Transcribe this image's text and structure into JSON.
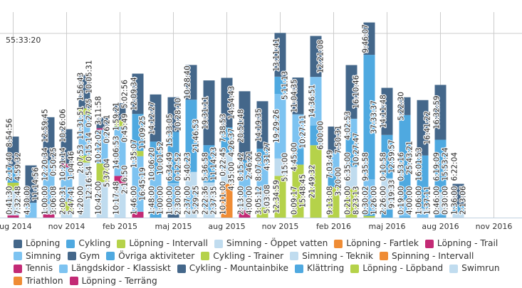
{
  "chart_data": {
    "type": "bar",
    "stacked": true,
    "y_axis": {
      "tick_labels": [
        "55:33:20"
      ],
      "ylim_hours": [
        0,
        62
      ],
      "grid": true
    },
    "x_axis": {
      "tick_labels": [
        "aug 2014",
        "nov 2014",
        "feb 2015",
        "maj 2015",
        "aug 2015",
        "nov 2015",
        "feb 2016",
        "maj 2016",
        "aug 2016",
        "nov 2016"
      ]
    },
    "legend_position": "bottom",
    "series_colors": {
      "Löpning": "#44678a",
      "Cykling": "#4fa9e0",
      "Löpning - Intervall": "#b5d24a",
      "Simning - Öppet vatten": "#c0dcef",
      "Löpning - Fartlek": "#ef8c35",
      "Löpning - Trail": "#c32a75",
      "Simning": "#7dc3f1",
      "Gym": "#44678a",
      "Övriga aktiviteter": "#4fa9e0",
      "Cykling - Trainer": "#b5d24a",
      "Simning - Teknik": "#c0dcef",
      "Spinning - Intervall": "#ef8c35",
      "Tennis": "#c32a75",
      "Längdskidor - Klassiskt": "#7dc3f1",
      "Cykling - Mountainbike": "#44678a",
      "Klättring": "#4fa9e0",
      "Löpning - Löpband": "#b5d24a",
      "Swimrun": "#c0dcef",
      "Triathlon": "#ef8c35",
      "Löpning - Terräng": "#c32a75"
    },
    "legend": [
      "Löpning",
      "Cykling",
      "Löpning - Intervall",
      "Simning - Öppet vatten",
      "Löpning - Fartlek",
      "Löpning - Trail",
      "Simning",
      "Gym",
      "Övriga aktiviteter",
      "Cykling - Trainer",
      "Simning - Teknik",
      "Spinning - Intervall",
      "Tennis",
      "Längdskidor - Klassiskt",
      "Cykling - Mountainbike",
      "Klättring",
      "Löpning - Löpband",
      "Swimrun",
      "Triathlon",
      "Löpning - Terräng"
    ],
    "bars": [
      {
        "month": "aug 2014",
        "segments": [
          [
            "Löpning - Trail",
            "0:41:30"
          ],
          [
            "Simning - Öppet vatten",
            "7:32:48"
          ],
          [
            "Löpning - Intervall",
            "2:17:40"
          ],
          [
            "Cykling",
            "4:59:32"
          ],
          [
            "Löpning",
            "8:54:56"
          ]
        ]
      },
      {
        "month": "sep 2014",
        "segments": [
          [
            "Simning",
            "4:30:00"
          ],
          [
            "Löpning",
            "11:14:56"
          ]
        ]
      },
      {
        "month": "okt 2014",
        "segments": [
          [
            "Löpning - Trail",
            "1:00:00"
          ],
          [
            "Simning - Öppet vatten",
            "3:06:08"
          ],
          [
            "Simning",
            "12:20:34"
          ],
          [
            "Cykling",
            "0:50:25"
          ],
          [
            "Löpning",
            "12:59:45"
          ]
        ]
      },
      {
        "month": "nov 2014",
        "segments": [
          [
            "Simning - Öppet vatten",
            "2:00:31"
          ],
          [
            "Löpning - Intervall",
            "2:47:41"
          ],
          [
            "Simning",
            "10:21:14"
          ],
          [
            "Löpning - Trail",
            "1:04:46"
          ],
          [
            "Löpning",
            "10:26:06"
          ]
        ]
      },
      {
        "month": "dec 2014",
        "segments": [
          [
            "Simning - Öppet vatten",
            "4:20:00"
          ],
          [
            "Simning - Teknik",
            "12:16:54"
          ],
          [
            "Cykling - Trainer",
            "2:07:53"
          ],
          [
            "Övriga aktiviteter",
            "0:15:14"
          ],
          [
            "Simning",
            "11:31:51"
          ],
          [
            "Cykling",
            "0:27:25"
          ],
          [
            "Löpning - Intervall",
            "1:56:43"
          ],
          [
            "Löpning",
            "10:05:31"
          ]
        ]
      },
      {
        "month": "jan 2015",
        "segments": [
          [
            "Simning - Teknik",
            "10:42:00"
          ],
          [
            "Cykling - Trainer",
            "5:37:04"
          ],
          [
            "Simning",
            "10:12:02"
          ],
          [
            "Löpning - Trail",
            "0:26:21"
          ],
          [
            "Löpning",
            "3:11:58"
          ]
        ]
      },
      {
        "month": "feb 2015",
        "segments": [
          [
            "Simning - Teknik",
            "10:17:48"
          ],
          [
            "Löpning - Trail",
            "2:16:50"
          ],
          [
            "Simning",
            "14:06:53"
          ],
          [
            "Cykling",
            "0:45:49"
          ],
          [
            "Löpning - Intervall",
            "1:59:21"
          ],
          [
            "Löpning",
            "5:02:56"
          ]
        ]
      },
      {
        "month": "mar 2015",
        "segments": [
          [
            "Löpning - Trail",
            "1:46:00"
          ],
          [
            "Simning",
            "16:45:19"
          ],
          [
            "Löpning - Intervall",
            "1:35:07"
          ],
          [
            "Cykling",
            "11:09:25"
          ],
          [
            "Löpning",
            "12:09:34"
          ]
        ]
      },
      {
        "month": "apr 2015",
        "segments": [
          [
            "Övriga aktiviteter",
            "1:48:00"
          ],
          [
            "Simning - Öppet vatten",
            "1:00:00"
          ],
          [
            "Simning",
            "10:06:20"
          ],
          [
            "Cykling",
            "10:01:52"
          ],
          [
            "Löpning",
            "14:12:27"
          ]
        ]
      },
      {
        "month": "maj 2015",
        "segments": [
          [
            "Gym",
            "1:00:00"
          ],
          [
            "Simning - Teknik",
            "2:30:00"
          ],
          [
            "Simning",
            "6:34:49"
          ],
          [
            "Simning - Öppet vatten",
            "0:12:52"
          ],
          [
            "Cykling",
            "15:33:05"
          ],
          [
            "Löpning",
            "10:28:10"
          ]
        ]
      },
      {
        "month": "jun 2015",
        "segments": [
          [
            "Simning - Teknik",
            "2:37:00"
          ],
          [
            "Simning",
            "5:29:25"
          ],
          [
            "Simning - Öppet vatten",
            "5:40:23"
          ],
          [
            "Cykling",
            "21:46:53"
          ],
          [
            "Löpning",
            "10:28:40"
          ]
        ]
      },
      {
        "month": "jul 2015",
        "segments": [
          [
            "Simning - Teknik",
            "2:22:36"
          ],
          [
            "Simning",
            "2:37:35"
          ],
          [
            "Simning - Öppet vatten",
            "5:36:58"
          ],
          [
            "Cykling",
            "11:14:23"
          ],
          [
            "Löpning",
            "19:31:11"
          ]
        ]
      },
      {
        "month": "aug 2015",
        "segments": [
          [
            "Löpning - Fartlek",
            "10:11:00"
          ],
          [
            "Simning - Teknik",
            "4:35:00"
          ],
          [
            "Simning",
            "0:22:45"
          ],
          [
            "Simning - Öppet vatten",
            "4:26:37"
          ],
          [
            "Cykling",
            "7:38:53"
          ],
          [
            "Löpning",
            "14:54:43"
          ]
        ]
      },
      {
        "month": "sep 2015",
        "segments": [
          [
            "Löpning - Trail",
            "2:13:00"
          ],
          [
            "Simning - Teknik",
            "4:00:00"
          ],
          [
            "Simning",
            "8:15:42"
          ],
          [
            "Cykling",
            "2:46:21"
          ],
          [
            "Löpning",
            "20:51:48"
          ]
        ]
      },
      {
        "month": "okt 2015",
        "segments": [
          [
            "Cykling - Trainer",
            "3:05:12"
          ],
          [
            "Simning - Teknik",
            "5:03:08"
          ],
          [
            "Simning",
            "8:07:06"
          ],
          [
            "Cykling",
            "4:31:27"
          ],
          [
            "Löpning",
            "14:19:35"
          ]
        ]
      },
      {
        "month": "nov 2015",
        "segments": [
          [
            "Cykling - Trainer",
            "12:34:59"
          ],
          [
            "Simning - Teknik",
            "5:15:00"
          ],
          [
            "Simning",
            "19:29:26"
          ],
          [
            "Cykling",
            "5:11:13"
          ],
          [
            "Löpning",
            "13:11:41"
          ]
        ]
      },
      {
        "month": "dec 2015",
        "segments": [
          [
            "Löpning - Intervall",
            "0:09:17"
          ],
          [
            "Cykling - Trainer",
            "15:48:45"
          ],
          [
            "Cykling",
            "4:45:00"
          ],
          [
            "Simning",
            "10:27:11"
          ],
          [
            "Löpning",
            "11:04:35"
          ]
        ]
      },
      {
        "month": "jan 2016",
        "segments": [
          [
            "Cykling - Trainer",
            "21:49:32"
          ],
          [
            "Cykling",
            "6:00:00"
          ],
          [
            "Simning",
            "14:36:51"
          ],
          [
            "Löpning",
            "12:21:08"
          ]
        ]
      },
      {
        "month": "feb 2016",
        "segments": [
          [
            "Cykling - Trainer",
            "9:13:08"
          ],
          [
            "Cykling",
            "3:20:00"
          ],
          [
            "Simning",
            "7:03:49"
          ],
          [
            "Löpning",
            "7:50:31"
          ]
        ]
      },
      {
        "month": "mar 2016",
        "segments": [
          [
            "Löpning - Intervall",
            "0:21:00"
          ],
          [
            "Cykling - Trainer",
            "8:23:13"
          ],
          [
            "Simning - Teknik",
            "6:35:00"
          ],
          [
            "Cykling",
            "10:27:47"
          ],
          [
            "Simning",
            "4:02:53"
          ],
          [
            "Löpning",
            "16:10:46"
          ]
        ]
      },
      {
        "month": "apr 2016",
        "segments": [
          [
            "Löpning - Intervall",
            "0:30:02"
          ],
          [
            "Klättring",
            "1:26:00"
          ],
          [
            "Simning",
            "9:35:58"
          ],
          [
            "Cykling",
            "37:33:37"
          ],
          [
            "Löpning",
            "9:46:07"
          ]
        ]
      },
      {
        "month": "maj 2016",
        "segments": [
          [
            "Övriga aktiviteter",
            "2:26:00"
          ],
          [
            "Simning - Teknik",
            "9:19:33"
          ],
          [
            "Simning",
            "0:10:58"
          ],
          [
            "Cykling",
            "12:59:57"
          ],
          [
            "Löpning",
            "14:11:48"
          ]
        ]
      },
      {
        "month": "jun 2016",
        "segments": [
          [
            "Övriga aktiviteter",
            "0:19:00"
          ],
          [
            "Simning",
            "4:00:00"
          ],
          [
            "Simning - Öppet vatten",
            "0:53:16"
          ],
          [
            "Cykling",
            "25:43:21"
          ],
          [
            "Löpning",
            "5:22:30"
          ]
        ]
      },
      {
        "month": "jul 2016",
        "segments": [
          [
            "Simning",
            "1:06:00"
          ],
          [
            "Simning - Öppet vatten",
            "1:37:11"
          ],
          [
            "Cykling",
            "16:01:53"
          ],
          [
            "Löpning",
            "16:41:22"
          ]
        ]
      },
      {
        "month": "aug 2016",
        "segments": [
          [
            "Klättring",
            "0:46:00"
          ],
          [
            "Simning",
            "0:30:00"
          ],
          [
            "Simning - Öppet vatten",
            "6:19:09"
          ],
          [
            "Cykling",
            "15:53:24"
          ],
          [
            "Löpning",
            "16:32:59"
          ]
        ]
      },
      {
        "month": "sep 2016",
        "segments": [
          [
            "Simning - Öppet vatten",
            "1:36:00"
          ],
          [
            "Cykling",
            "2:13:06"
          ],
          [
            "Löpning",
            "6:22:04"
          ]
        ]
      }
    ]
  }
}
